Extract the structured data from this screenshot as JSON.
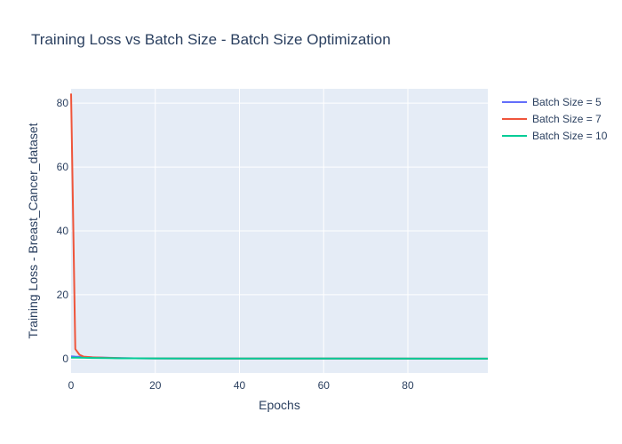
{
  "chart_data": {
    "type": "line",
    "title": "Training Loss vs Batch Size - Batch Size Optimization",
    "xlabel": "Epochs",
    "ylabel": "Training Loss - Breast_Cancer_dataset",
    "xlim": [
      0,
      99
    ],
    "ylim": [
      -4.5,
      84.5
    ],
    "xticks": [
      0,
      20,
      40,
      60,
      80
    ],
    "yticks": [
      0,
      20,
      40,
      60,
      80
    ],
    "grid": true,
    "legend_position": "top-right",
    "background": "#E5ECF6",
    "series": [
      {
        "name": "Batch Size = 5",
        "color": "#636EFA",
        "points": [
          [
            0,
            0.7
          ],
          [
            1,
            0.6
          ],
          [
            3,
            0.5
          ],
          [
            5,
            0.4
          ],
          [
            8,
            0.3
          ],
          [
            12,
            0.15
          ],
          [
            15,
            0.1
          ],
          [
            20,
            0.05
          ],
          [
            30,
            0.02
          ],
          [
            50,
            0.01
          ],
          [
            99,
            0.0
          ]
        ]
      },
      {
        "name": "Batch Size = 7",
        "color": "#EF553B",
        "points": [
          [
            0,
            83.0
          ],
          [
            1,
            3.0
          ],
          [
            2,
            1.2
          ],
          [
            3,
            0.6
          ],
          [
            5,
            0.4
          ],
          [
            8,
            0.25
          ],
          [
            12,
            0.12
          ],
          [
            15,
            0.08
          ],
          [
            20,
            0.05
          ],
          [
            30,
            0.02
          ],
          [
            50,
            0.01
          ],
          [
            99,
            0.0
          ]
        ]
      },
      {
        "name": "Batch Size = 10",
        "color": "#00CC96",
        "points": [
          [
            0,
            0.3
          ],
          [
            1,
            0.28
          ],
          [
            3,
            0.25
          ],
          [
            5,
            0.2
          ],
          [
            8,
            0.15
          ],
          [
            12,
            0.1
          ],
          [
            15,
            0.08
          ],
          [
            20,
            0.05
          ],
          [
            30,
            0.02
          ],
          [
            50,
            0.01
          ],
          [
            99,
            0.0
          ]
        ]
      }
    ]
  }
}
